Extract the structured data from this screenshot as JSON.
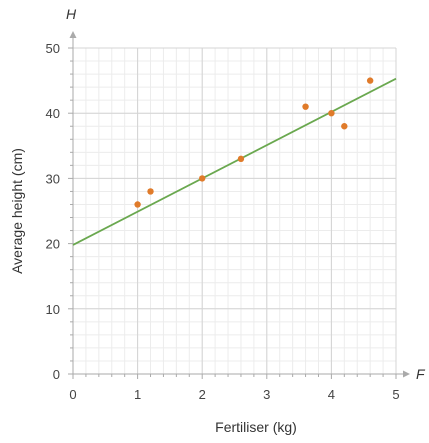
{
  "chart_data": {
    "type": "scatter",
    "title": "",
    "xlabel": "Fertiliser (kg)",
    "ylabel": "Average height (cm)",
    "x_axis_symbol": "F",
    "y_axis_symbol": "H",
    "xlim": [
      0,
      5
    ],
    "ylim": [
      0,
      50
    ],
    "x_ticks": [
      "0",
      "1",
      "2",
      "3",
      "4",
      "5"
    ],
    "y_ticks": [
      "0",
      "10",
      "20",
      "30",
      "40",
      "50"
    ],
    "grid": true,
    "series": [
      {
        "type": "scatter",
        "color": "#e07b2a",
        "points": [
          {
            "x": 1.0,
            "y": 26
          },
          {
            "x": 1.2,
            "y": 28
          },
          {
            "x": 2.0,
            "y": 30
          },
          {
            "x": 2.6,
            "y": 33
          },
          {
            "x": 3.6,
            "y": 41
          },
          {
            "x": 4.0,
            "y": 40
          },
          {
            "x": 4.2,
            "y": 38
          },
          {
            "x": 4.6,
            "y": 45
          }
        ]
      },
      {
        "type": "line",
        "color": "#6aa84f",
        "intercept": 19.8,
        "slope": 5.1
      }
    ]
  }
}
